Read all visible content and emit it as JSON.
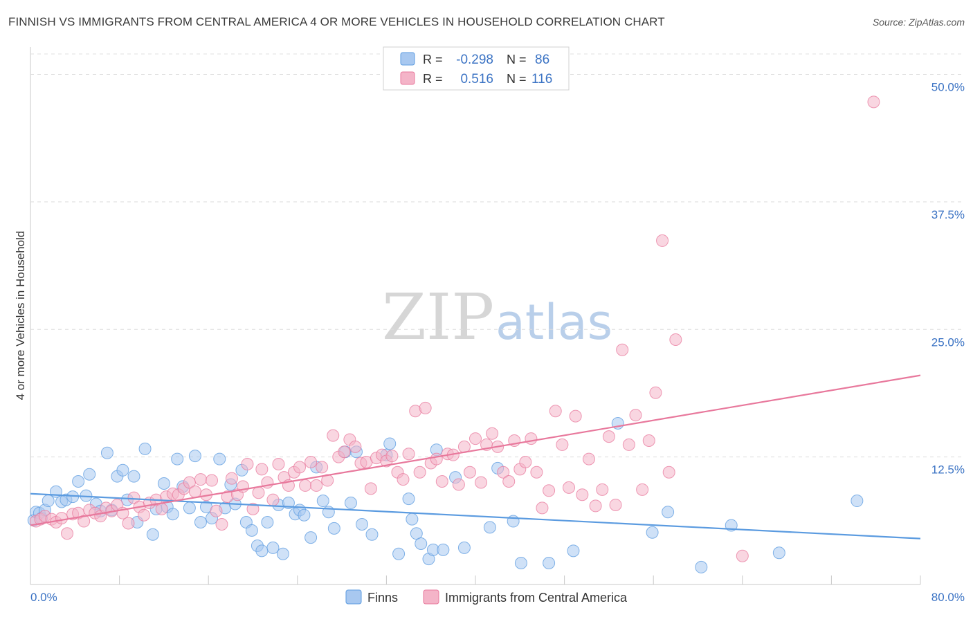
{
  "header": {
    "title": "FINNISH VS IMMIGRANTS FROM CENTRAL AMERICA 4 OR MORE VEHICLES IN HOUSEHOLD CORRELATION CHART",
    "source": "Source: ZipAtlas.com"
  },
  "watermark": {
    "part1": "ZIP",
    "part2": "atlas"
  },
  "legend": {
    "rows": [
      {
        "r_label": "R =",
        "r_value": "-0.298",
        "n_label": "N =",
        "n_value": "86",
        "color": "#a8c8f0"
      },
      {
        "r_label": "R =",
        "r_value": "0.516",
        "n_label": "N =",
        "n_value": "116",
        "color": "#f4b4c8"
      }
    ]
  },
  "bottom_legend": {
    "items": [
      {
        "label": "Finns",
        "color": "#a8c8f0"
      },
      {
        "label": "Immigrants from Central America",
        "color": "#f4b4c8"
      }
    ]
  },
  "chart_data": {
    "type": "scatter",
    "title": "FINNISH VS IMMIGRANTS FROM CENTRAL AMERICA 4 OR MORE VEHICLES IN HOUSEHOLD CORRELATION CHART",
    "xlabel": "",
    "ylabel": "4 or more Vehicles in Household",
    "xlim": [
      0,
      80
    ],
    "ylim": [
      0,
      52
    ],
    "x_tick_labels": [
      "0.0%",
      "80.0%"
    ],
    "y_ticks": [
      12.5,
      25.0,
      37.5,
      50.0
    ],
    "y_tick_labels": [
      "12.5%",
      "25.0%",
      "37.5%",
      "50.0%"
    ],
    "grid": "horizontal dashed",
    "legend_position": "top-center",
    "series": [
      {
        "name": "Finns",
        "color": "#5b9be0",
        "fill": "#a8c8f0",
        "trend": {
          "x": [
            0,
            80
          ],
          "y": [
            8.9,
            4.5
          ]
        },
        "points": [
          [
            0.3,
            6.3
          ],
          [
            0.5,
            7.1
          ],
          [
            0.8,
            7.0
          ],
          [
            1.0,
            6.5
          ],
          [
            1.3,
            7.3
          ],
          [
            1.6,
            8.2
          ],
          [
            2.3,
            9.1
          ],
          [
            2.8,
            8.1
          ],
          [
            3.2,
            8.3
          ],
          [
            3.8,
            8.6
          ],
          [
            4.3,
            10.1
          ],
          [
            5.0,
            8.7
          ],
          [
            5.3,
            10.8
          ],
          [
            5.9,
            7.9
          ],
          [
            6.3,
            7.2
          ],
          [
            6.9,
            12.9
          ],
          [
            7.3,
            7.3
          ],
          [
            7.8,
            10.6
          ],
          [
            8.3,
            11.2
          ],
          [
            8.7,
            8.3
          ],
          [
            9.3,
            10.6
          ],
          [
            9.6,
            6.1
          ],
          [
            10.3,
            13.3
          ],
          [
            11.0,
            4.9
          ],
          [
            11.3,
            7.4
          ],
          [
            12.0,
            9.9
          ],
          [
            12.3,
            7.6
          ],
          [
            12.8,
            6.9
          ],
          [
            13.2,
            12.3
          ],
          [
            13.7,
            9.6
          ],
          [
            14.3,
            7.5
          ],
          [
            14.8,
            12.6
          ],
          [
            15.3,
            6.1
          ],
          [
            15.8,
            7.6
          ],
          [
            16.3,
            6.5
          ],
          [
            17.0,
            12.3
          ],
          [
            17.5,
            7.5
          ],
          [
            18.0,
            9.8
          ],
          [
            18.4,
            7.9
          ],
          [
            19.0,
            11.2
          ],
          [
            19.4,
            6.1
          ],
          [
            19.9,
            5.3
          ],
          [
            20.4,
            3.8
          ],
          [
            20.8,
            3.3
          ],
          [
            21.3,
            6.1
          ],
          [
            21.8,
            3.6
          ],
          [
            22.3,
            7.8
          ],
          [
            22.7,
            3.0
          ],
          [
            23.2,
            8.0
          ],
          [
            23.8,
            6.9
          ],
          [
            24.2,
            7.3
          ],
          [
            24.6,
            6.8
          ],
          [
            25.2,
            4.6
          ],
          [
            25.7,
            11.5
          ],
          [
            26.3,
            8.2
          ],
          [
            26.8,
            7.1
          ],
          [
            27.3,
            5.5
          ],
          [
            28.3,
            13.0
          ],
          [
            28.8,
            8.0
          ],
          [
            29.3,
            13.0
          ],
          [
            29.8,
            5.9
          ],
          [
            30.7,
            4.9
          ],
          [
            32.0,
            12.7
          ],
          [
            32.3,
            13.8
          ],
          [
            33.1,
            3.0
          ],
          [
            34.0,
            8.4
          ],
          [
            34.3,
            6.4
          ],
          [
            34.7,
            5.0
          ],
          [
            35.1,
            4.0
          ],
          [
            35.8,
            2.5
          ],
          [
            36.2,
            3.4
          ],
          [
            36.5,
            13.2
          ],
          [
            37.1,
            3.4
          ],
          [
            38.2,
            10.5
          ],
          [
            39.0,
            3.6
          ],
          [
            41.3,
            5.6
          ],
          [
            42.0,
            11.4
          ],
          [
            43.4,
            6.2
          ],
          [
            44.1,
            2.1
          ],
          [
            46.6,
            2.1
          ],
          [
            48.8,
            3.3
          ],
          [
            52.8,
            15.8
          ],
          [
            55.9,
            5.1
          ],
          [
            57.3,
            7.1
          ],
          [
            60.3,
            1.7
          ],
          [
            63.0,
            5.8
          ],
          [
            67.3,
            3.1
          ],
          [
            74.3,
            8.2
          ]
        ]
      },
      {
        "name": "Immigrants from Central America",
        "color": "#e8789c",
        "fill": "#f4b4c8",
        "trend": {
          "x": [
            0,
            80
          ],
          "y": [
            5.8,
            20.5
          ]
        },
        "points": [
          [
            0.5,
            6.2
          ],
          [
            0.9,
            6.4
          ],
          [
            1.3,
            6.7
          ],
          [
            1.9,
            6.4
          ],
          [
            2.3,
            6.1
          ],
          [
            2.8,
            6.5
          ],
          [
            3.3,
            5.0
          ],
          [
            3.8,
            6.9
          ],
          [
            4.3,
            7.0
          ],
          [
            4.8,
            6.2
          ],
          [
            5.3,
            7.3
          ],
          [
            5.8,
            7.0
          ],
          [
            6.3,
            6.7
          ],
          [
            6.8,
            7.5
          ],
          [
            7.3,
            7.2
          ],
          [
            7.8,
            7.8
          ],
          [
            8.3,
            7.0
          ],
          [
            8.8,
            6.0
          ],
          [
            9.3,
            8.5
          ],
          [
            9.8,
            7.6
          ],
          [
            10.2,
            6.8
          ],
          [
            10.7,
            8.0
          ],
          [
            11.3,
            8.3
          ],
          [
            11.8,
            7.4
          ],
          [
            12.2,
            8.6
          ],
          [
            12.8,
            8.9
          ],
          [
            13.3,
            8.8
          ],
          [
            13.8,
            9.4
          ],
          [
            14.3,
            10.0
          ],
          [
            14.8,
            9.1
          ],
          [
            15.3,
            10.3
          ],
          [
            15.8,
            8.8
          ],
          [
            16.3,
            10.2
          ],
          [
            16.7,
            7.2
          ],
          [
            17.2,
            5.9
          ],
          [
            17.7,
            8.6
          ],
          [
            18.1,
            10.4
          ],
          [
            18.6,
            8.8
          ],
          [
            19.1,
            9.6
          ],
          [
            19.5,
            11.8
          ],
          [
            20.0,
            7.4
          ],
          [
            20.5,
            9.0
          ],
          [
            20.8,
            11.3
          ],
          [
            21.3,
            10.0
          ],
          [
            21.8,
            8.3
          ],
          [
            22.3,
            11.8
          ],
          [
            22.8,
            10.5
          ],
          [
            23.2,
            9.7
          ],
          [
            23.7,
            11.0
          ],
          [
            24.2,
            11.5
          ],
          [
            24.7,
            9.7
          ],
          [
            25.2,
            12.0
          ],
          [
            25.7,
            9.7
          ],
          [
            26.2,
            11.5
          ],
          [
            26.7,
            10.2
          ],
          [
            27.2,
            14.6
          ],
          [
            27.7,
            12.5
          ],
          [
            28.2,
            13.0
          ],
          [
            28.7,
            14.2
          ],
          [
            29.2,
            13.5
          ],
          [
            29.7,
            11.9
          ],
          [
            30.2,
            12.0
          ],
          [
            30.6,
            9.4
          ],
          [
            31.1,
            12.4
          ],
          [
            31.6,
            12.7
          ],
          [
            32.0,
            12.1
          ],
          [
            32.5,
            12.6
          ],
          [
            33.0,
            11.0
          ],
          [
            33.5,
            10.3
          ],
          [
            34.0,
            12.8
          ],
          [
            34.6,
            17.0
          ],
          [
            35.0,
            11.0
          ],
          [
            35.5,
            17.3
          ],
          [
            36.0,
            11.9
          ],
          [
            36.5,
            12.3
          ],
          [
            37.0,
            10.1
          ],
          [
            37.5,
            12.8
          ],
          [
            38.0,
            12.7
          ],
          [
            38.5,
            9.8
          ],
          [
            39.0,
            13.5
          ],
          [
            39.5,
            11.0
          ],
          [
            40.0,
            14.3
          ],
          [
            40.5,
            10.0
          ],
          [
            41.0,
            13.7
          ],
          [
            41.5,
            14.8
          ],
          [
            42.0,
            13.5
          ],
          [
            42.5,
            11.0
          ],
          [
            43.0,
            10.1
          ],
          [
            43.5,
            14.1
          ],
          [
            44.0,
            11.3
          ],
          [
            44.5,
            12.0
          ],
          [
            45.0,
            14.3
          ],
          [
            45.5,
            11.0
          ],
          [
            46.0,
            7.5
          ],
          [
            46.6,
            9.2
          ],
          [
            47.2,
            17.0
          ],
          [
            47.8,
            13.7
          ],
          [
            48.4,
            9.5
          ],
          [
            49.0,
            16.5
          ],
          [
            49.6,
            8.8
          ],
          [
            50.2,
            12.3
          ],
          [
            50.8,
            7.7
          ],
          [
            51.4,
            9.3
          ],
          [
            52.0,
            14.5
          ],
          [
            52.6,
            7.8
          ],
          [
            53.2,
            23.0
          ],
          [
            53.8,
            13.7
          ],
          [
            54.4,
            16.6
          ],
          [
            55.0,
            9.3
          ],
          [
            55.6,
            14.1
          ],
          [
            56.2,
            18.8
          ],
          [
            56.8,
            33.7
          ],
          [
            57.4,
            11.0
          ],
          [
            58.0,
            24.0
          ],
          [
            64.0,
            2.8
          ],
          [
            75.8,
            47.3
          ]
        ]
      }
    ]
  }
}
